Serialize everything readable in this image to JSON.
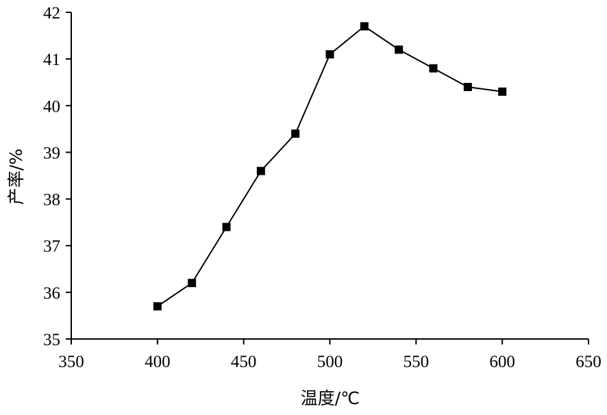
{
  "chart_data": {
    "type": "line",
    "title": "",
    "xlabel": "温度/℃",
    "ylabel": "产率/%",
    "xlim": [
      350,
      650
    ],
    "ylim": [
      35,
      42
    ],
    "xticks": [
      350,
      400,
      450,
      500,
      550,
      600,
      650
    ],
    "yticks": [
      35,
      36,
      37,
      38,
      39,
      40,
      41,
      42
    ],
    "grid": false,
    "legend": "none",
    "marker": "square",
    "line_color": "#000000",
    "series": [
      {
        "x": [
          400,
          420,
          440,
          460,
          480,
          500,
          520,
          540,
          560,
          580,
          600
        ],
        "y": [
          35.7,
          36.2,
          37.4,
          38.6,
          39.4,
          41.1,
          41.7,
          41.2,
          40.8,
          40.4,
          40.3
        ]
      }
    ]
  }
}
